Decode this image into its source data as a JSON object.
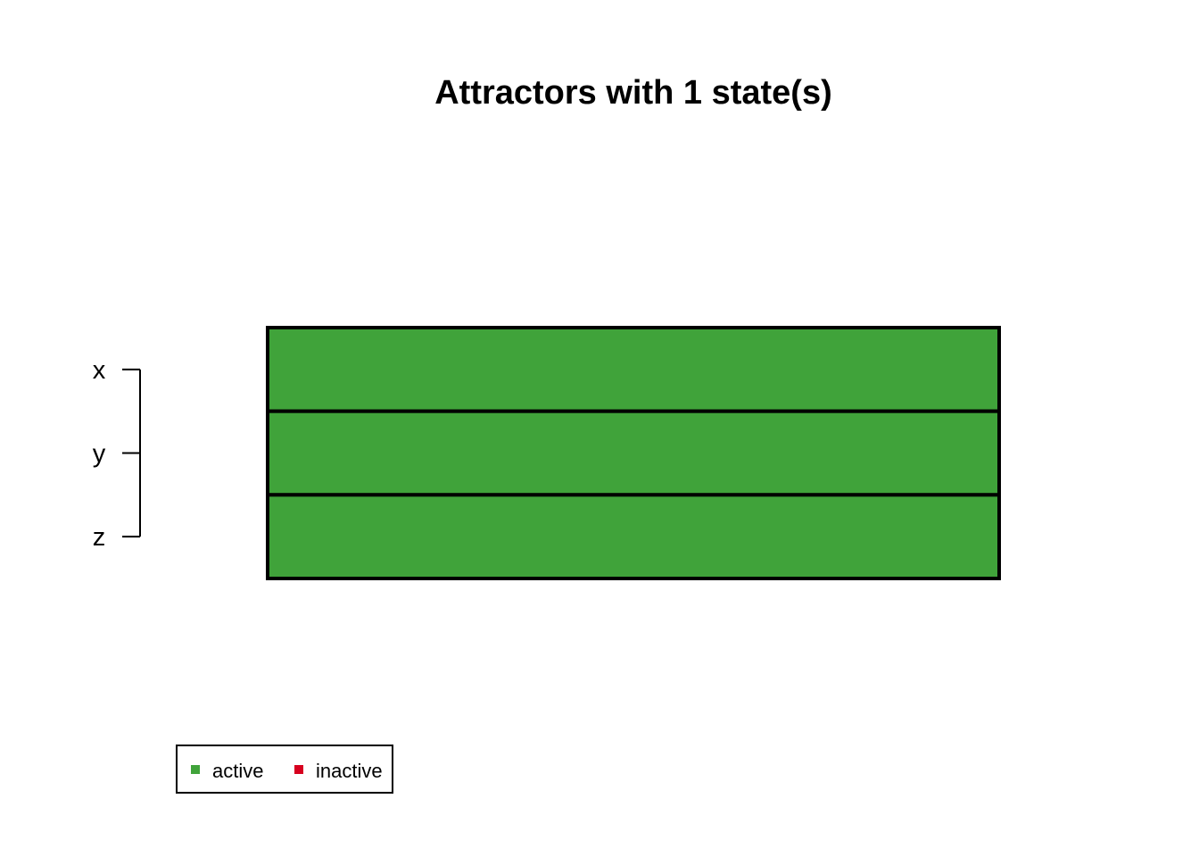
{
  "chart_data": {
    "type": "heatmap",
    "title": "Attractors with 1 state(s)",
    "genes": [
      "x",
      "y",
      "z"
    ],
    "states": [
      {
        "x": 1,
        "y": 1,
        "z": 1
      }
    ],
    "legend": {
      "placement": "bottom-left",
      "entries": [
        {
          "label": "active",
          "value": 1,
          "color": "#40A33A"
        },
        {
          "label": "inactive",
          "value": 0,
          "color": "#D7001F"
        }
      ]
    },
    "colors": {
      "active": "#40A33A",
      "inactive": "#D7001F",
      "border": "#000000"
    }
  }
}
